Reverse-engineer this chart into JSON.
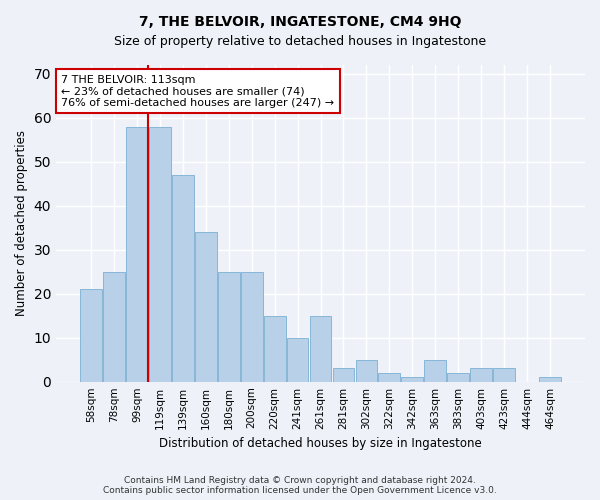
{
  "title": "7, THE BELVOIR, INGATESTONE, CM4 9HQ",
  "subtitle": "Size of property relative to detached houses in Ingatestone",
  "xlabel": "Distribution of detached houses by size in Ingatestone",
  "ylabel": "Number of detached properties",
  "categories": [
    "58sqm",
    "78sqm",
    "99sqm",
    "119sqm",
    "139sqm",
    "160sqm",
    "180sqm",
    "200sqm",
    "220sqm",
    "241sqm",
    "261sqm",
    "281sqm",
    "302sqm",
    "322sqm",
    "342sqm",
    "363sqm",
    "383sqm",
    "403sqm",
    "423sqm",
    "444sqm",
    "464sqm"
  ],
  "values": [
    21,
    25,
    58,
    58,
    47,
    34,
    25,
    25,
    15,
    10,
    15,
    3,
    5,
    2,
    1,
    5,
    2,
    3,
    3,
    0,
    1
  ],
  "bar_color": "#b8d0e8",
  "bar_edge_color": "#7aafd4",
  "redline_x": 2.5,
  "annotation_text": "7 THE BELVOIR: 113sqm\n← 23% of detached houses are smaller (74)\n76% of semi-detached houses are larger (247) →",
  "annotation_box_color": "#ffffff",
  "annotation_box_edge": "#cc0000",
  "footer1": "Contains HM Land Registry data © Crown copyright and database right 2024.",
  "footer2": "Contains public sector information licensed under the Open Government Licence v3.0.",
  "ylim": [
    0,
    72
  ],
  "yticks": [
    0,
    10,
    20,
    30,
    40,
    50,
    60,
    70
  ],
  "bg_color": "#eef2f8",
  "grid_color": "#ffffff",
  "title_fontsize": 10,
  "subtitle_fontsize": 9,
  "axis_label_fontsize": 8.5,
  "tick_fontsize": 7.5,
  "annotation_fontsize": 8,
  "footer_fontsize": 6.5
}
